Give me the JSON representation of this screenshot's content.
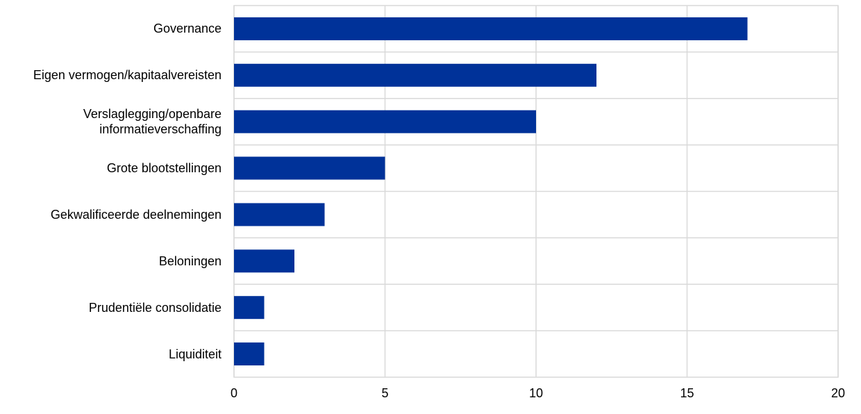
{
  "chart_data": {
    "type": "bar",
    "orientation": "horizontal",
    "categories": [
      "Governance",
      "Eigen vermogen/kapitaalvereisten",
      "Verslaglegging/openbare\ninformatieverschaffing",
      "Grote blootstellingen",
      "Gekwalificeerde deelnemingen",
      "Beloningen",
      "Prudentiële consolidatie",
      "Liquiditeit"
    ],
    "values": [
      17,
      12,
      10,
      5,
      3,
      2,
      1,
      1
    ],
    "xlim": [
      0,
      20
    ],
    "x_ticks": [
      "0",
      "5",
      "10",
      "15",
      "20"
    ],
    "grid": true,
    "bar_color": "#003299"
  }
}
